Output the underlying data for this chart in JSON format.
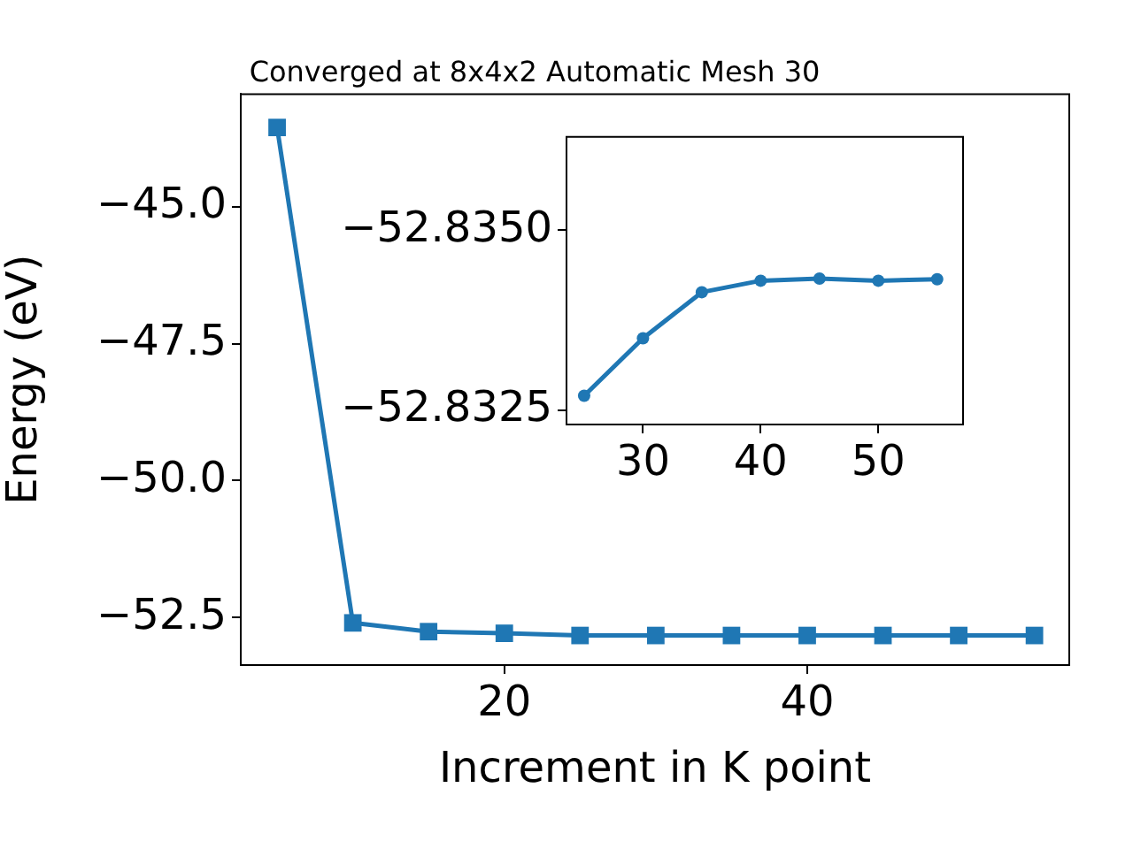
{
  "chart_data": [
    {
      "type": "line",
      "title": "Converged at 8x4x2 Automatic Mesh 30",
      "xlabel": "Increment in K point",
      "ylabel": "Energy (eV)",
      "x": [
        5,
        10,
        15,
        20,
        25,
        30,
        35,
        40,
        45,
        50,
        55
      ],
      "series": [
        {
          "color": "#1f77b4",
          "values": [
            -43.55,
            -52.6,
            -52.76,
            -52.79,
            -52.83,
            -52.83,
            -52.83,
            -52.83,
            -52.83,
            -52.83,
            -52.83
          ]
        }
      ],
      "xlim": [
        2.6,
        57.3
      ],
      "xticks": [
        20,
        40
      ],
      "ylim": [
        -53.37,
        -42.94
      ],
      "yticks": [
        {
          "value": -45,
          "label": "−45.0"
        },
        {
          "value": -47.5,
          "label": "−47.5"
        },
        {
          "value": -50,
          "label": "−50.0"
        },
        {
          "value": -52.5,
          "label": "−52.5"
        }
      ],
      "grid": false,
      "marker": "square",
      "line_style": "solid"
    },
    {
      "type": "line",
      "x": [
        25,
        30,
        35,
        40,
        45,
        50,
        55
      ],
      "series": [
        {
          "color": "#1f77b4",
          "values": [
            -52.8327,
            -52.8335,
            -52.83414,
            -52.8343,
            -52.83433,
            -52.8343,
            -52.83432
          ]
        }
      ],
      "xlim": [
        23.5,
        57.2
      ],
      "xticks": [
        30,
        40,
        50
      ],
      "ylim": [
        -52.8323,
        -52.8363
      ],
      "yticks": [
        {
          "value": -52.835,
          "label": "−52.8350"
        },
        {
          "value": -52.8325,
          "label": "−52.8325"
        }
      ],
      "grid": false,
      "marker": "circle",
      "line_style": "solid"
    }
  ]
}
